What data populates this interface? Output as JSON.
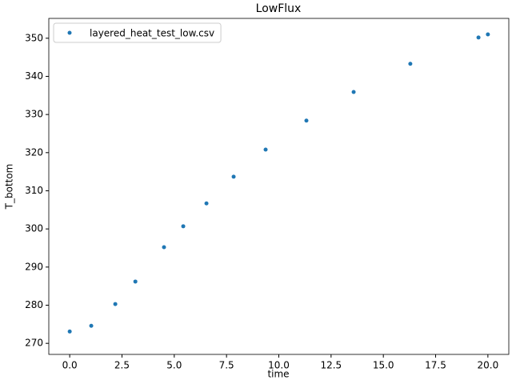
{
  "chart_data": {
    "type": "scatter",
    "title": "LowFlux",
    "x_label": "time",
    "y_label": "T_bottom",
    "legend": "upper left",
    "series": [
      {
        "name": "layered_heat_test_low.csv",
        "color": "#1f77b4",
        "x": [
          0,
          1.03,
          2.18,
          3.14,
          4.51,
          5.43,
          6.54,
          7.84,
          9.37,
          11.32,
          13.58,
          16.29,
          19.55,
          20
        ],
        "values": [
          273.1,
          274.6,
          280.3,
          286.2,
          295.2,
          300.7,
          306.7,
          313.7,
          320.8,
          328.4,
          335.9,
          343.3,
          350.2,
          351.0
        ]
      }
    ],
    "xlim": [
      -1,
      21
    ],
    "ylim": [
      267.1,
      355.2
    ],
    "xticks": [
      {
        "value": 0,
        "label": "0.0"
      },
      {
        "value": 2.5,
        "label": "2.5"
      },
      {
        "value": 5,
        "label": "5.0"
      },
      {
        "value": 7.5,
        "label": "7.5"
      },
      {
        "value": 10,
        "label": "10.0"
      },
      {
        "value": 12.5,
        "label": "12.5"
      },
      {
        "value": 15,
        "label": "15.0"
      },
      {
        "value": 17.5,
        "label": "17.5"
      },
      {
        "value": 20,
        "label": "20.0"
      }
    ],
    "yticks": [
      270,
      280,
      290,
      300,
      310,
      320,
      330,
      340,
      350
    ]
  }
}
